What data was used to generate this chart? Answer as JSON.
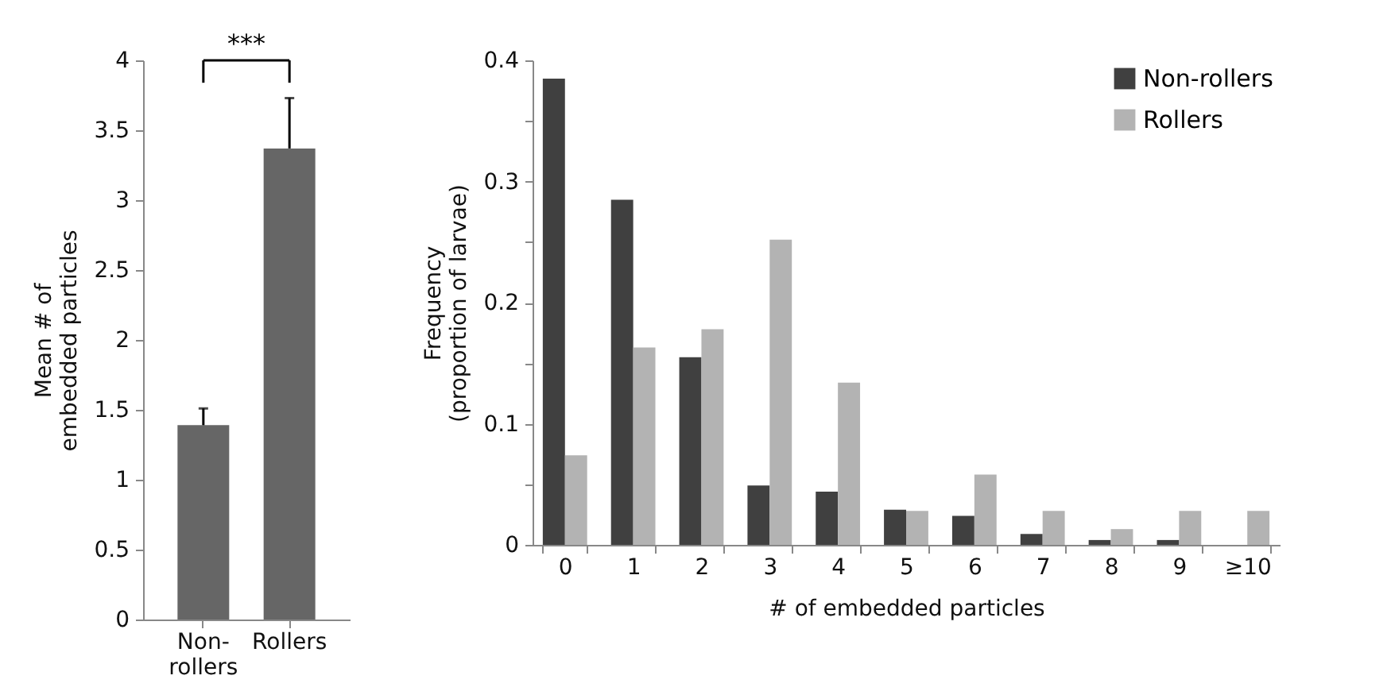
{
  "chart_data": [
    {
      "type": "bar",
      "ylabel": "Mean # of embedded particles",
      "categories": [
        "Non-rollers",
        "Rollers"
      ],
      "values": [
        1.39,
        3.37
      ],
      "color": "#666666",
      "errors": [
        [
          1.39,
          1.51
        ],
        [
          3.37,
          3.73
        ]
      ],
      "ylim": [
        0,
        4
      ],
      "yticks": [
        0,
        0.5,
        1,
        1.5,
        2,
        2.5,
        3,
        3.5,
        4
      ],
      "grid": false,
      "annotations": [
        "***"
      ]
    },
    {
      "type": "bar",
      "xlabel": "# of embedded particles",
      "ylabel": "Frequency (proportion of larvae)",
      "categories": [
        "0",
        "1",
        "2",
        "3",
        "4",
        "5",
        "6",
        "7",
        "8",
        "9",
        "≥10"
      ],
      "series": [
        {
          "name": "Non-rollers",
          "color": "#404040",
          "values": [
            0.385,
            0.285,
            0.155,
            0.049,
            0.044,
            0.029,
            0.024,
            0.009,
            0.004,
            0.004,
            0
          ]
        },
        {
          "name": "Rollers",
          "color": "#b3b3b3",
          "values": [
            0.074,
            0.163,
            0.178,
            0.252,
            0.134,
            0.028,
            0.058,
            0.028,
            0.013,
            0.028,
            0.028
          ]
        }
      ],
      "ylim": [
        0,
        0.4
      ],
      "yticks": [
        0,
        {
          "value": 0.05,
          "label": null
        },
        0.1,
        {
          "value": 0.15,
          "label": null
        },
        0.2,
        {
          "value": 0.25,
          "label": null
        },
        0.3,
        {
          "value": 0.35,
          "label": null
        },
        0.4
      ],
      "grid": false,
      "legend": "top right"
    }
  ]
}
